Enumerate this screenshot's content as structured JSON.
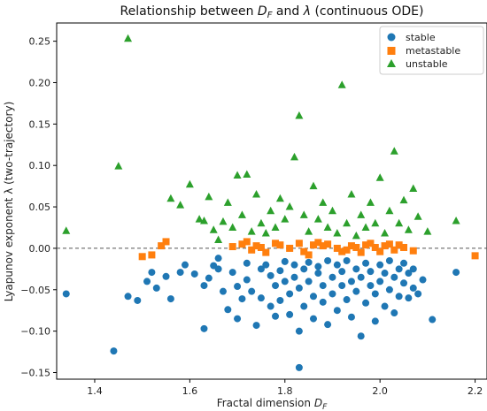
{
  "chart_data": {
    "type": "scatter",
    "title": "Relationship between D_F and λ (continuous ODE)",
    "title_parts": {
      "prefix": "Relationship between ",
      "df_main": "D",
      "df_sub": "F",
      "middle": " and ",
      "lambda": "λ",
      "suffix": " (continuous ODE)"
    },
    "xlabel": "Fractal dimension D_F",
    "xlabel_parts": {
      "prefix": "Fractal dimension ",
      "df_main": "D",
      "df_sub": "F"
    },
    "ylabel": "Lyapunov exponent λ (two-trajectory)",
    "xlim": [
      1.32,
      2.225
    ],
    "ylim": [
      -0.158,
      0.272
    ],
    "xticks": [
      "1.4",
      "1.6",
      "1.8",
      "2.0",
      "2.2"
    ],
    "yticks": [
      "−0.15",
      "−0.10",
      "−0.05",
      "0.00",
      "0.05",
      "0.10",
      "0.15",
      "0.20",
      "0.25"
    ],
    "reference_line": {
      "y": 0,
      "style": "dashed",
      "color": "#555555"
    },
    "grid": false,
    "legend_position": "top-right",
    "series": [
      {
        "name": "stable",
        "marker": "circle",
        "color": "#1f77b4",
        "points": [
          [
            1.34,
            -0.055
          ],
          [
            1.44,
            -0.124
          ],
          [
            1.47,
            -0.058
          ],
          [
            1.49,
            -0.063
          ],
          [
            1.51,
            -0.04
          ],
          [
            1.53,
            -0.048
          ],
          [
            1.52,
            -0.029
          ],
          [
            1.55,
            -0.034
          ],
          [
            1.56,
            -0.061
          ],
          [
            1.58,
            -0.029
          ],
          [
            1.59,
            -0.02
          ],
          [
            1.61,
            -0.031
          ],
          [
            1.63,
            -0.097
          ],
          [
            1.63,
            -0.045
          ],
          [
            1.64,
            -0.036
          ],
          [
            1.65,
            -0.021
          ],
          [
            1.66,
            -0.025
          ],
          [
            1.66,
            -0.012
          ],
          [
            1.67,
            -0.052
          ],
          [
            1.68,
            -0.074
          ],
          [
            1.69,
            -0.029
          ],
          [
            1.7,
            -0.046
          ],
          [
            1.7,
            -0.085
          ],
          [
            1.71,
            -0.061
          ],
          [
            1.72,
            -0.038
          ],
          [
            1.72,
            -0.018
          ],
          [
            1.73,
            -0.052
          ],
          [
            1.74,
            -0.093
          ],
          [
            1.75,
            -0.025
          ],
          [
            1.75,
            -0.06
          ],
          [
            1.76,
            -0.02
          ],
          [
            1.77,
            -0.033
          ],
          [
            1.77,
            -0.07
          ],
          [
            1.78,
            -0.045
          ],
          [
            1.78,
            -0.082
          ],
          [
            1.79,
            -0.027
          ],
          [
            1.79,
            -0.063
          ],
          [
            1.8,
            -0.016
          ],
          [
            1.8,
            -0.04
          ],
          [
            1.81,
            -0.055
          ],
          [
            1.81,
            -0.08
          ],
          [
            1.82,
            -0.02
          ],
          [
            1.82,
            -0.035
          ],
          [
            1.83,
            -0.048
          ],
          [
            1.83,
            -0.1
          ],
          [
            1.83,
            -0.144
          ],
          [
            1.84,
            -0.025
          ],
          [
            1.84,
            -0.07
          ],
          [
            1.85,
            -0.04
          ],
          [
            1.85,
            -0.017
          ],
          [
            1.86,
            -0.058
          ],
          [
            1.86,
            -0.085
          ],
          [
            1.87,
            -0.03
          ],
          [
            1.87,
            -0.022
          ],
          [
            1.88,
            -0.045
          ],
          [
            1.88,
            -0.065
          ],
          [
            1.89,
            -0.015
          ],
          [
            1.89,
            -0.092
          ],
          [
            1.9,
            -0.035
          ],
          [
            1.9,
            -0.055
          ],
          [
            1.91,
            -0.02
          ],
          [
            1.91,
            -0.075
          ],
          [
            1.92,
            -0.045
          ],
          [
            1.92,
            -0.028
          ],
          [
            1.93,
            -0.062
          ],
          [
            1.93,
            -0.015
          ],
          [
            1.94,
            -0.04
          ],
          [
            1.94,
            -0.083
          ],
          [
            1.95,
            -0.025
          ],
          [
            1.95,
            -0.052
          ],
          [
            1.96,
            -0.035
          ],
          [
            1.96,
            -0.106
          ],
          [
            1.97,
            -0.018
          ],
          [
            1.97,
            -0.066
          ],
          [
            1.98,
            -0.045
          ],
          [
            1.98,
            -0.028
          ],
          [
            1.99,
            -0.055
          ],
          [
            1.99,
            -0.088
          ],
          [
            2.0,
            -0.02
          ],
          [
            2.0,
            -0.04
          ],
          [
            2.01,
            -0.03
          ],
          [
            2.01,
            -0.07
          ],
          [
            2.02,
            -0.015
          ],
          [
            2.02,
            -0.05
          ],
          [
            2.03,
            -0.035
          ],
          [
            2.03,
            -0.078
          ],
          [
            2.04,
            -0.025
          ],
          [
            2.04,
            -0.058
          ],
          [
            2.05,
            -0.042
          ],
          [
            2.05,
            -0.018
          ],
          [
            2.06,
            -0.03
          ],
          [
            2.06,
            -0.06
          ],
          [
            2.07,
            -0.048
          ],
          [
            2.07,
            -0.025
          ],
          [
            2.08,
            -0.055
          ],
          [
            2.09,
            -0.038
          ],
          [
            2.11,
            -0.086
          ],
          [
            2.16,
            -0.029
          ]
        ]
      },
      {
        "name": "metastable",
        "marker": "square",
        "color": "#ff7f0e",
        "points": [
          [
            1.5,
            -0.01
          ],
          [
            1.52,
            -0.008
          ],
          [
            1.54,
            0.003
          ],
          [
            1.55,
            0.008
          ],
          [
            1.69,
            0.002
          ],
          [
            1.71,
            0.005
          ],
          [
            1.72,
            0.008
          ],
          [
            1.73,
            -0.002
          ],
          [
            1.74,
            0.003
          ],
          [
            1.75,
            0.001
          ],
          [
            1.76,
            -0.005
          ],
          [
            1.78,
            0.006
          ],
          [
            1.79,
            0.004
          ],
          [
            1.81,
            0.0
          ],
          [
            1.83,
            0.006
          ],
          [
            1.84,
            -0.004
          ],
          [
            1.85,
            -0.008
          ],
          [
            1.86,
            0.004
          ],
          [
            1.87,
            0.007
          ],
          [
            1.88,
            0.003
          ],
          [
            1.89,
            0.005
          ],
          [
            1.91,
            0.0
          ],
          [
            1.92,
            -0.004
          ],
          [
            1.93,
            -0.002
          ],
          [
            1.94,
            0.003
          ],
          [
            1.95,
            0.001
          ],
          [
            1.96,
            -0.005
          ],
          [
            1.97,
            0.004
          ],
          [
            1.98,
            0.006
          ],
          [
            1.99,
            0.001
          ],
          [
            2.0,
            -0.004
          ],
          [
            2.01,
            0.003
          ],
          [
            2.02,
            0.005
          ],
          [
            2.03,
            -0.002
          ],
          [
            2.04,
            0.004
          ],
          [
            2.05,
            0.001
          ],
          [
            2.07,
            -0.003
          ],
          [
            2.2,
            -0.009
          ]
        ]
      },
      {
        "name": "unstable",
        "marker": "triangle",
        "color": "#2ca02c",
        "points": [
          [
            1.34,
            0.021
          ],
          [
            1.45,
            0.099
          ],
          [
            1.47,
            0.253
          ],
          [
            1.56,
            0.06
          ],
          [
            1.58,
            0.052
          ],
          [
            1.6,
            0.077
          ],
          [
            1.62,
            0.035
          ],
          [
            1.63,
            0.033
          ],
          [
            1.64,
            0.062
          ],
          [
            1.65,
            0.022
          ],
          [
            1.66,
            0.01
          ],
          [
            1.67,
            0.032
          ],
          [
            1.68,
            0.055
          ],
          [
            1.69,
            0.025
          ],
          [
            1.7,
            0.088
          ],
          [
            1.71,
            0.04
          ],
          [
            1.72,
            0.089
          ],
          [
            1.73,
            0.02
          ],
          [
            1.74,
            0.065
          ],
          [
            1.75,
            0.03
          ],
          [
            1.76,
            0.018
          ],
          [
            1.77,
            0.045
          ],
          [
            1.78,
            0.025
          ],
          [
            1.79,
            0.06
          ],
          [
            1.8,
            0.035
          ],
          [
            1.81,
            0.05
          ],
          [
            1.82,
            0.11
          ],
          [
            1.83,
            0.16
          ],
          [
            1.84,
            0.04
          ],
          [
            1.85,
            0.02
          ],
          [
            1.86,
            0.075
          ],
          [
            1.87,
            0.035
          ],
          [
            1.88,
            0.055
          ],
          [
            1.89,
            0.025
          ],
          [
            1.9,
            0.045
          ],
          [
            1.91,
            0.018
          ],
          [
            1.92,
            0.197
          ],
          [
            1.93,
            0.03
          ],
          [
            1.94,
            0.065
          ],
          [
            1.95,
            0.015
          ],
          [
            1.96,
            0.04
          ],
          [
            1.97,
            0.025
          ],
          [
            1.98,
            0.055
          ],
          [
            1.99,
            0.03
          ],
          [
            2.0,
            0.085
          ],
          [
            2.01,
            0.018
          ],
          [
            2.02,
            0.045
          ],
          [
            2.03,
            0.117
          ],
          [
            2.04,
            0.03
          ],
          [
            2.05,
            0.058
          ],
          [
            2.06,
            0.022
          ],
          [
            2.07,
            0.072
          ],
          [
            2.08,
            0.038
          ],
          [
            2.1,
            0.02
          ],
          [
            2.16,
            0.033
          ]
        ]
      }
    ]
  }
}
